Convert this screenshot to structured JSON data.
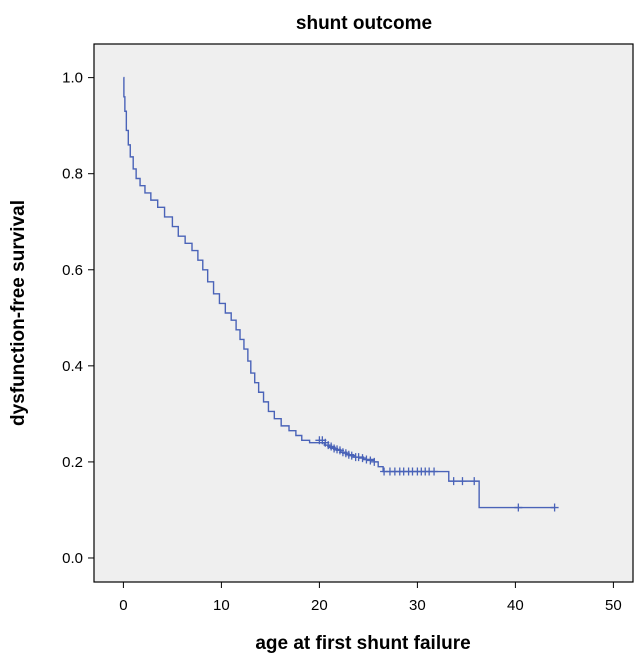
{
  "chart_data": {
    "type": "line",
    "title": "shunt outcome",
    "xlabel": "age at first shunt failure",
    "ylabel": "dysfunction-free survival",
    "xlim": [
      -3,
      52
    ],
    "ylim": [
      -0.05,
      1.07
    ],
    "xticks": [
      0,
      10,
      20,
      30,
      40,
      50
    ],
    "yticks": [
      0.0,
      0.2,
      0.4,
      0.6,
      0.8,
      1.0
    ],
    "xtick_labels": [
      "0",
      "10",
      "20",
      "30",
      "40",
      "50"
    ],
    "ytick_labels": [
      "0.0",
      "0.2",
      "0.4",
      "0.6",
      "0.8",
      "1.0"
    ],
    "grid": false,
    "plot_background": "#efefef",
    "series": [
      {
        "color": "#4a63b8",
        "step": true,
        "points": [
          [
            0.0,
            1.0
          ],
          [
            0.05,
            0.96
          ],
          [
            0.15,
            0.93
          ],
          [
            0.3,
            0.89
          ],
          [
            0.5,
            0.86
          ],
          [
            0.7,
            0.835
          ],
          [
            1.0,
            0.81
          ],
          [
            1.3,
            0.79
          ],
          [
            1.7,
            0.775
          ],
          [
            2.2,
            0.76
          ],
          [
            2.8,
            0.745
          ],
          [
            3.5,
            0.73
          ],
          [
            4.2,
            0.71
          ],
          [
            5.0,
            0.69
          ],
          [
            5.6,
            0.67
          ],
          [
            6.3,
            0.655
          ],
          [
            7.0,
            0.64
          ],
          [
            7.6,
            0.62
          ],
          [
            8.1,
            0.6
          ],
          [
            8.6,
            0.575
          ],
          [
            9.2,
            0.55
          ],
          [
            9.8,
            0.53
          ],
          [
            10.4,
            0.51
          ],
          [
            11.0,
            0.495
          ],
          [
            11.5,
            0.475
          ],
          [
            11.9,
            0.455
          ],
          [
            12.3,
            0.435
          ],
          [
            12.7,
            0.41
          ],
          [
            13.0,
            0.385
          ],
          [
            13.4,
            0.365
          ],
          [
            13.8,
            0.345
          ],
          [
            14.3,
            0.325
          ],
          [
            14.8,
            0.305
          ],
          [
            15.4,
            0.29
          ],
          [
            16.1,
            0.275
          ],
          [
            16.9,
            0.265
          ],
          [
            17.6,
            0.255
          ],
          [
            18.2,
            0.245
          ],
          [
            19.0,
            0.24
          ],
          [
            20.0,
            0.24
          ],
          [
            20.5,
            0.235
          ],
          [
            21.0,
            0.23
          ],
          [
            21.6,
            0.225
          ],
          [
            22.2,
            0.22
          ],
          [
            22.8,
            0.215
          ],
          [
            23.5,
            0.21
          ],
          [
            24.5,
            0.205
          ],
          [
            25.6,
            0.2
          ],
          [
            26.0,
            0.19
          ],
          [
            26.5,
            0.18
          ],
          [
            33.0,
            0.18
          ],
          [
            33.2,
            0.16
          ],
          [
            36.3,
            0.16
          ],
          [
            36.3,
            0.105
          ],
          [
            44.0,
            0.105
          ]
        ],
        "censored": [
          [
            20.0,
            0.245
          ],
          [
            20.3,
            0.245
          ],
          [
            20.6,
            0.24
          ],
          [
            20.9,
            0.235
          ],
          [
            21.2,
            0.232
          ],
          [
            21.5,
            0.228
          ],
          [
            21.8,
            0.226
          ],
          [
            22.1,
            0.224
          ],
          [
            22.4,
            0.22
          ],
          [
            22.7,
            0.218
          ],
          [
            23.0,
            0.215
          ],
          [
            23.3,
            0.213
          ],
          [
            23.7,
            0.21
          ],
          [
            24.0,
            0.21
          ],
          [
            24.4,
            0.208
          ],
          [
            24.8,
            0.205
          ],
          [
            25.2,
            0.203
          ],
          [
            25.6,
            0.2
          ],
          [
            26.6,
            0.18
          ],
          [
            27.2,
            0.18
          ],
          [
            27.7,
            0.18
          ],
          [
            28.2,
            0.18
          ],
          [
            28.6,
            0.18
          ],
          [
            29.1,
            0.18
          ],
          [
            29.5,
            0.18
          ],
          [
            30.0,
            0.18
          ],
          [
            30.4,
            0.18
          ],
          [
            30.8,
            0.18
          ],
          [
            31.2,
            0.18
          ],
          [
            31.7,
            0.18
          ],
          [
            33.7,
            0.16
          ],
          [
            34.6,
            0.16
          ],
          [
            35.8,
            0.16
          ],
          [
            40.3,
            0.105
          ],
          [
            44.0,
            0.105
          ]
        ]
      }
    ]
  }
}
